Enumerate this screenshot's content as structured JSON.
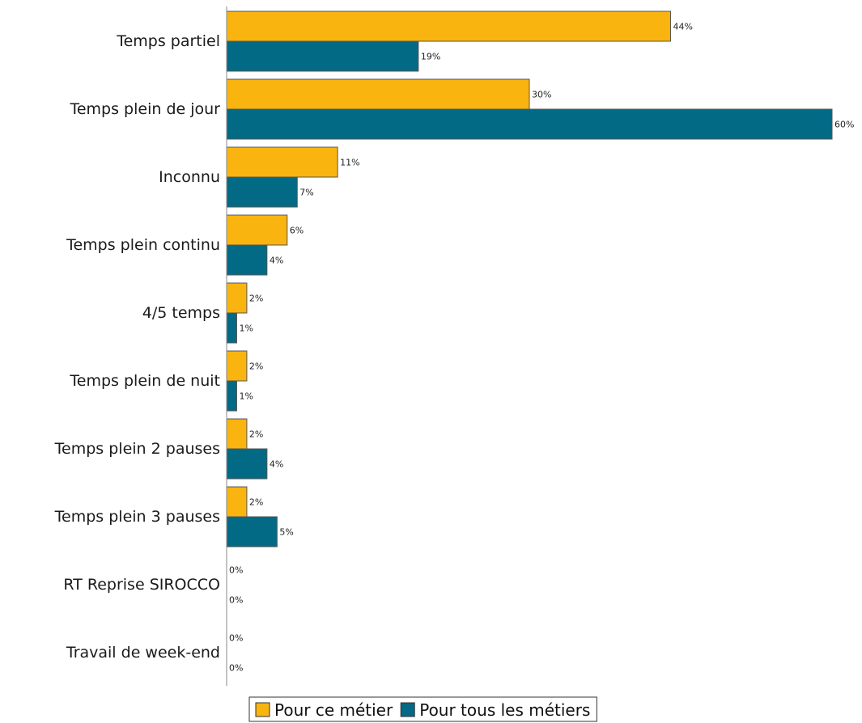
{
  "chart_data": {
    "type": "bar",
    "orientation": "horizontal",
    "categories": [
      "Temps partiel",
      "Temps plein de jour",
      "Inconnu",
      "Temps plein continu",
      "4/5 temps",
      "Temps plein de nuit",
      "Temps plein 2 pauses",
      "Temps plein 3 pauses",
      "RT Reprise SIROCCO",
      "Travail de week-end"
    ],
    "series": [
      {
        "name": "Pour ce métier",
        "color": "#F9B40F",
        "values": [
          44,
          30,
          11,
          6,
          2,
          2,
          2,
          2,
          0,
          0
        ],
        "labels": [
          "44%",
          "30%",
          "11%",
          "6%",
          "2%",
          "2%",
          "2%",
          "2%",
          "0%",
          "0%"
        ]
      },
      {
        "name": "Pour tous les métiers",
        "color": "#036A86",
        "values": [
          19,
          60,
          7,
          4,
          1,
          1,
          4,
          5,
          0,
          0
        ],
        "labels": [
          "19%",
          "60%",
          "7%",
          "4%",
          "1%",
          "1%",
          "4%",
          "5%",
          "0%",
          "0%"
        ]
      }
    ],
    "title": "",
    "xlabel": "",
    "ylabel": "",
    "xlim": [
      0,
      60
    ],
    "grid": false,
    "legend_position": "bottom"
  }
}
